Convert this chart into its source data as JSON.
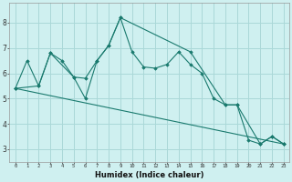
{
  "xlabel": "Humidex (Indice chaleur)",
  "bg_color": "#cff0f0",
  "grid_color": "#aad8d8",
  "line_color": "#1a7a6e",
  "xlim": [
    -0.5,
    23.5
  ],
  "ylim": [
    2.5,
    8.8
  ],
  "yticks": [
    3,
    4,
    5,
    6,
    7,
    8
  ],
  "xticks": [
    0,
    1,
    2,
    3,
    4,
    5,
    6,
    7,
    8,
    9,
    10,
    11,
    12,
    13,
    14,
    15,
    16,
    17,
    18,
    19,
    20,
    21,
    22,
    23
  ],
  "line1_x": [
    0,
    1,
    2,
    3,
    4,
    5,
    6,
    7,
    8,
    9,
    10,
    11,
    12,
    13,
    14,
    15,
    16,
    17,
    18,
    19,
    20,
    21,
    22,
    23
  ],
  "line1_y": [
    5.4,
    6.5,
    5.5,
    6.8,
    6.5,
    5.85,
    5.8,
    6.5,
    7.1,
    8.2,
    6.85,
    6.25,
    6.2,
    6.35,
    6.85,
    6.35,
    6.0,
    5.0,
    4.75,
    4.75,
    3.35,
    3.2,
    3.5,
    3.2
  ],
  "line2_x": [
    0,
    2,
    3,
    5,
    6,
    7,
    8,
    9,
    15,
    18,
    19,
    21,
    22,
    23
  ],
  "line2_y": [
    5.4,
    5.5,
    6.8,
    5.85,
    5.0,
    6.5,
    7.1,
    8.2,
    6.85,
    4.75,
    4.75,
    3.2,
    3.5,
    3.2
  ],
  "line3_x": [
    0,
    23
  ],
  "line3_y": [
    5.4,
    3.2
  ]
}
